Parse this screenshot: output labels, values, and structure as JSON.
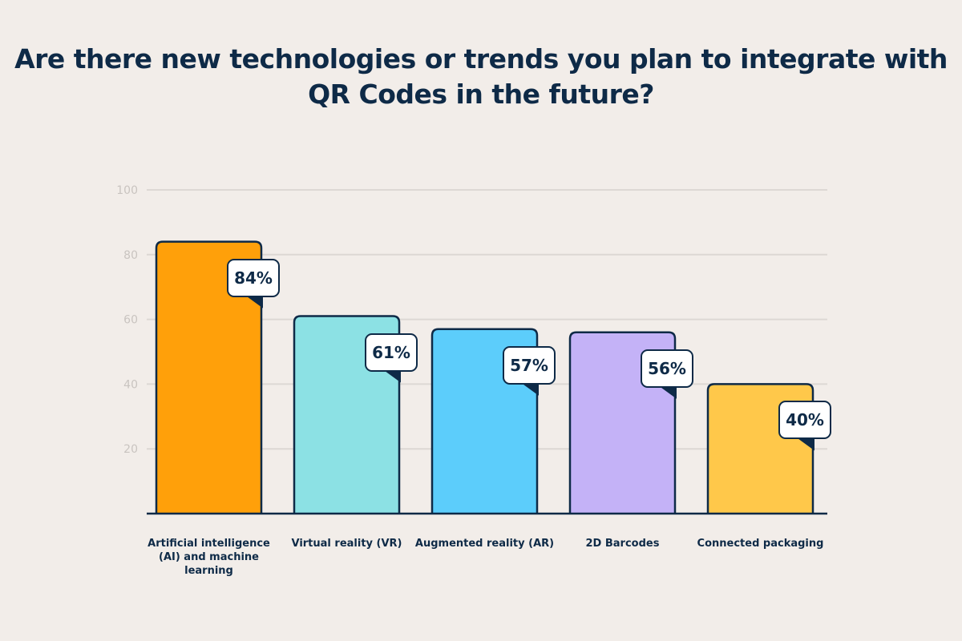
{
  "chart_data": {
    "type": "bar",
    "title": "Are there new technologies or trends you plan to integrate with QR Codes in the future?",
    "categories": [
      "Artificial intelligence (AI) and machine learning",
      "Virtual reality (VR)",
      "Augmented reality (AR)",
      "2D Barcodes",
      "Connected packaging"
    ],
    "values": [
      84,
      61,
      57,
      56,
      40
    ],
    "data_labels": [
      "84%",
      "61%",
      "57%",
      "56%",
      "40%"
    ],
    "colors": [
      "#FFA00A",
      "#8CE1E4",
      "#5CCDFB",
      "#C4B2F7",
      "#FFC84A"
    ],
    "ylim": [
      0,
      100
    ],
    "yticks": [
      20,
      40,
      60,
      80,
      100
    ],
    "grid": true,
    "xlabel": "",
    "ylabel": ""
  },
  "style": {
    "outline": "#0E2A47",
    "background": "#F2EDE9",
    "grid": "#DDD8D4"
  }
}
